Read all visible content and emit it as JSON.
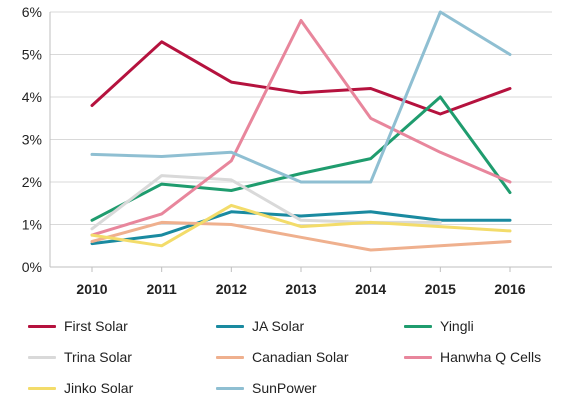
{
  "chart_data": {
    "type": "line",
    "x": [
      "2010",
      "2011",
      "2012",
      "2013",
      "2014",
      "2015",
      "2016"
    ],
    "ylim": [
      0,
      6
    ],
    "yticks": [
      "0%",
      "1%",
      "2%",
      "3%",
      "4%",
      "5%",
      "6%"
    ],
    "grid": "horizontal",
    "legend": "bottom",
    "series": [
      {
        "name": "First Solar",
        "color": "#b5123e",
        "values": [
          3.8,
          5.3,
          4.35,
          4.1,
          4.2,
          3.6,
          4.2
        ]
      },
      {
        "name": "JA Solar",
        "color": "#1a8aa0",
        "values": [
          0.55,
          0.75,
          1.3,
          1.2,
          1.3,
          1.1,
          1.1
        ]
      },
      {
        "name": "Yingli",
        "color": "#1f9c6e",
        "values": [
          1.1,
          1.95,
          1.8,
          2.2,
          2.55,
          4.0,
          1.75
        ]
      },
      {
        "name": "Trina Solar",
        "color": "#d9d9d9",
        "values": [
          0.9,
          2.15,
          2.05,
          1.1,
          1.05,
          1.05,
          null
        ]
      },
      {
        "name": "Canadian Solar",
        "color": "#efb08e",
        "values": [
          0.6,
          1.05,
          1.0,
          0.7,
          0.4,
          0.5,
          0.6
        ]
      },
      {
        "name": "Hanwha Q Cells",
        "color": "#e8869c",
        "values": [
          0.75,
          1.25,
          2.5,
          5.8,
          3.5,
          2.7,
          2.0
        ]
      },
      {
        "name": "Jinko Solar",
        "color": "#f3dc6a",
        "values": [
          0.75,
          0.5,
          1.45,
          0.95,
          1.05,
          0.95,
          0.85
        ]
      },
      {
        "name": "SunPower",
        "color": "#8fbfd2",
        "values": [
          2.65,
          2.6,
          2.7,
          2.0,
          2.0,
          6.0,
          5.0
        ]
      }
    ]
  }
}
